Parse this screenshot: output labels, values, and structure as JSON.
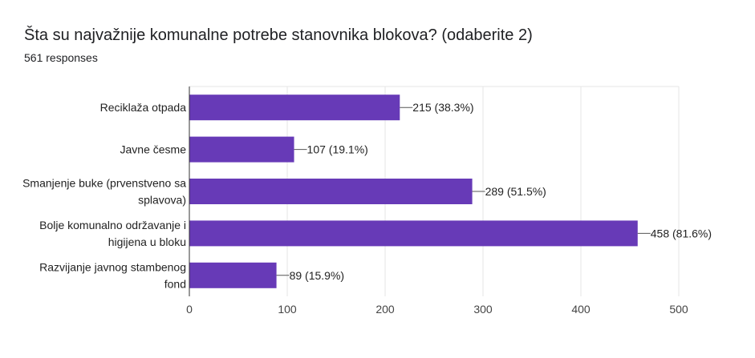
{
  "header": {
    "title": "Šta su najvažnije komunalne potrebe stanovnika blokova? (odaberite 2)",
    "responses": "561 responses"
  },
  "chart_data": {
    "type": "bar",
    "orientation": "horizontal",
    "categories": [
      [
        "Reciklaža otpada"
      ],
      [
        "Javne česme"
      ],
      [
        "Smanjenje buke (prvenstveno sa",
        "splavova)"
      ],
      [
        "Bolje komunalno održavanje i",
        "higijena u bloku"
      ],
      [
        "Razvijanje javnog stambenog",
        "fond"
      ]
    ],
    "values": [
      215,
      107,
      289,
      458,
      89
    ],
    "data_labels": [
      "215 (38.3%)",
      "107 (19.1%)",
      "289 (51.5%)",
      "458 (81.6%)",
      "89 (15.9%)"
    ],
    "xlim": [
      0,
      500
    ],
    "xticks": [
      0,
      100,
      200,
      300,
      400,
      500
    ],
    "grid": true,
    "bar_color": "#673ab7"
  }
}
